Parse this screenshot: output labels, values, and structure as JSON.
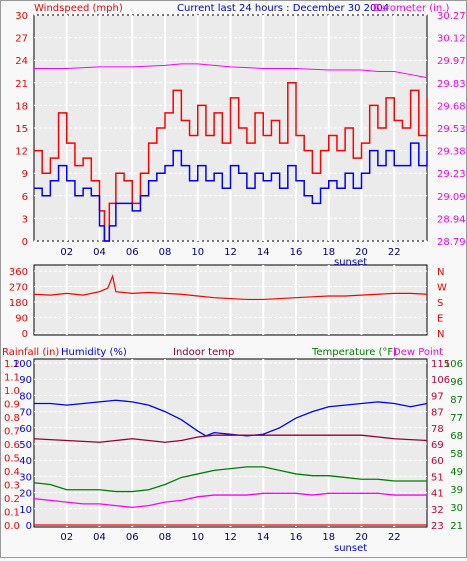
{
  "header": {
    "windspeed_label": "Windspeed (mph)",
    "title": "Current last 24 hours : December 30 2004",
    "barometer_label": "Barometer (in.)"
  },
  "bottom_header": {
    "rainfall_label": "Rainfall (in)",
    "humidity_label": "Humidity (%)",
    "indoor_label": "Indoor temp",
    "temperature_label": "Temperature (°F)",
    "dewpoint_label": "Dew Point"
  },
  "colors": {
    "windspeed": "#ff0000",
    "wind_avg": "#0000ff",
    "barometer": "#ff00ff",
    "direction": "#ff0000",
    "humidity": "#0000ff",
    "indoor": "#990033",
    "temperature": "#008000",
    "dewpoint": "#ff00ff",
    "rainfall": "#ff0000",
    "plot_bg": "#ebebeb",
    "title": "#0000cc"
  },
  "chart_data": [
    {
      "type": "line",
      "xticks": [
        "02",
        "04",
        "06",
        "08",
        "10",
        "12",
        "14",
        "16",
        "18",
        "20",
        "22"
      ],
      "x_annotation": "sunset",
      "ylim_left": [
        0,
        30
      ],
      "left_ticks": [
        "0",
        "3",
        "6",
        "9",
        "12",
        "15",
        "18",
        "21",
        "24",
        "27",
        "30"
      ],
      "right_ticks": [
        "28.79",
        "28.94",
        "29.09",
        "29.23",
        "29.38",
        "29.53",
        "29.68",
        "29.83",
        "29.97",
        "30.12",
        "30.27"
      ],
      "grid": true,
      "series": [
        {
          "name": "Windspeed (mph)",
          "axis": "left",
          "color": "#ff0000",
          "hours": [
            0,
            0.5,
            1,
            1.5,
            2,
            2.5,
            3,
            3.5,
            4,
            4.3,
            4.6,
            5,
            5.5,
            6,
            6.5,
            7,
            7.5,
            8,
            8.5,
            9,
            9.5,
            10,
            10.5,
            11,
            11.5,
            12,
            12.5,
            13,
            13.5,
            14,
            14.5,
            15,
            15.5,
            16,
            16.5,
            17,
            17.5,
            18,
            18.5,
            19,
            19.5,
            20,
            20.5,
            21,
            21.5,
            22,
            22.5,
            23,
            23.5,
            24
          ],
          "values": [
            12,
            9,
            11,
            17,
            13,
            10,
            11,
            8,
            4,
            0,
            5,
            9,
            8,
            5,
            9,
            13,
            15,
            17,
            20,
            16,
            14,
            18,
            14,
            17,
            13,
            19,
            15,
            13,
            17,
            14,
            16,
            13,
            21,
            14,
            12,
            9,
            12,
            14,
            12,
            15,
            11,
            13,
            18,
            15,
            19,
            16,
            15,
            20,
            14,
            19
          ]
        },
        {
          "name": "Wind average",
          "axis": "left",
          "color": "#0000ff",
          "hours": [
            0,
            0.5,
            1,
            1.5,
            2,
            2.5,
            3,
            3.5,
            4,
            4.3,
            4.6,
            5,
            5.5,
            6,
            6.5,
            7,
            7.5,
            8,
            8.5,
            9,
            9.5,
            10,
            10.5,
            11,
            11.5,
            12,
            12.5,
            13,
            13.5,
            14,
            14.5,
            15,
            15.5,
            16,
            16.5,
            17,
            17.5,
            18,
            18.5,
            19,
            19.5,
            20,
            20.5,
            21,
            21.5,
            22,
            22.5,
            23,
            23.5,
            24
          ],
          "values": [
            7,
            6,
            8,
            10,
            8,
            6,
            7,
            6,
            2,
            0,
            2,
            5,
            5,
            4,
            6,
            8,
            9,
            10,
            12,
            10,
            8,
            10,
            8,
            9,
            7,
            10,
            9,
            7,
            9,
            8,
            9,
            7,
            10,
            8,
            6,
            5,
            7,
            8,
            7,
            9,
            7,
            9,
            12,
            10,
            12,
            10,
            10,
            13,
            10,
            12
          ]
        },
        {
          "name": "Barometer (in.)",
          "axis": "right",
          "color": "#ff00ff",
          "hours": [
            0,
            2,
            4,
            6,
            8,
            9,
            10,
            11,
            12,
            14,
            16,
            18,
            20,
            21,
            22,
            23,
            24
          ],
          "values": [
            29.92,
            29.92,
            29.93,
            29.93,
            29.94,
            29.95,
            29.95,
            29.94,
            29.93,
            29.92,
            29.92,
            29.91,
            29.91,
            29.9,
            29.9,
            29.88,
            29.86
          ]
        }
      ]
    },
    {
      "type": "line",
      "xticks": [
        "02",
        "04",
        "06",
        "08",
        "10",
        "12",
        "14",
        "16",
        "18",
        "20",
        "22"
      ],
      "left_ticks": [
        "0",
        "90",
        "180",
        "270",
        "360"
      ],
      "right_ticks": [
        "N",
        "E",
        "S",
        "W",
        "N"
      ],
      "ylim": [
        0,
        360
      ],
      "grid": true,
      "series": [
        {
          "name": "Wind direction",
          "color": "#ff0000",
          "hours": [
            0,
            1,
            2,
            3,
            4,
            4.5,
            4.8,
            5,
            5.5,
            6,
            7,
            8,
            9,
            10,
            11,
            12,
            13,
            14,
            15,
            16,
            17,
            18,
            19,
            20,
            21,
            22,
            23,
            24
          ],
          "values": [
            225,
            220,
            230,
            220,
            240,
            260,
            330,
            240,
            235,
            230,
            235,
            230,
            225,
            215,
            205,
            200,
            195,
            195,
            200,
            205,
            210,
            215,
            215,
            220,
            225,
            230,
            230,
            225
          ]
        }
      ]
    },
    {
      "type": "line",
      "xticks": [
        "02",
        "04",
        "06",
        "08",
        "10",
        "12",
        "14",
        "16",
        "18",
        "20",
        "22"
      ],
      "x_annotation": "sunset",
      "rain_ticks": [
        "0.0",
        "0.1",
        "0.2",
        "0.3",
        "0.4",
        "0.5",
        "0.6",
        "0.7",
        "0.8",
        "0.9",
        "1.0",
        "1.1",
        "1.2"
      ],
      "humidity_ticks": [
        "0",
        "10",
        "20",
        "30",
        "40",
        "50",
        "60",
        "70",
        "80",
        "90",
        "100"
      ],
      "right_ticks_a": [
        "23",
        "32",
        "41",
        "51",
        "60",
        "69",
        "78",
        "87",
        "97",
        "106",
        "115"
      ],
      "right_ticks_b": [
        "21",
        "30",
        "39",
        "49",
        "58",
        "68",
        "77",
        "87",
        "96",
        "106"
      ],
      "grid": true,
      "series": [
        {
          "name": "Humidity (%)",
          "axis": "humidity",
          "color": "#0000ff",
          "hours": [
            0,
            1,
            2,
            3,
            4,
            5,
            6,
            7,
            8,
            9,
            10,
            10.5,
            11,
            12,
            13,
            14,
            15,
            16,
            17,
            18,
            19,
            20,
            21,
            22,
            23,
            24
          ],
          "values": [
            75,
            75,
            74,
            75,
            76,
            77,
            76,
            74,
            70,
            65,
            58,
            55,
            57,
            56,
            55,
            56,
            60,
            66,
            70,
            73,
            74,
            75,
            76,
            75,
            73,
            75
          ]
        },
        {
          "name": "Indoor temp",
          "axis": "temp",
          "color": "#990033",
          "hours": [
            0,
            2,
            4,
            5,
            6,
            7,
            8,
            9,
            10,
            11,
            12,
            14,
            16,
            18,
            20,
            22,
            24
          ],
          "values": [
            72,
            71,
            70,
            71,
            72,
            71,
            70,
            71,
            73,
            74,
            74,
            74,
            74,
            74,
            74,
            72,
            71
          ]
        },
        {
          "name": "Temperature (°F)",
          "axis": "temp",
          "color": "#008000",
          "hours": [
            0,
            1,
            2,
            3,
            4,
            5,
            6,
            7,
            8,
            9,
            10,
            11,
            12,
            13,
            14,
            15,
            16,
            17,
            18,
            19,
            20,
            21,
            22,
            23,
            24
          ],
          "values": [
            47,
            46,
            43,
            43,
            43,
            42,
            42,
            43,
            46,
            50,
            52,
            54,
            55,
            56,
            56,
            54,
            52,
            51,
            51,
            50,
            49,
            49,
            48,
            48,
            48
          ]
        },
        {
          "name": "Dew Point",
          "axis": "temp",
          "color": "#ff00ff",
          "hours": [
            0,
            1,
            2,
            3,
            4,
            5,
            6,
            7,
            8,
            9,
            10,
            11,
            12,
            13,
            14,
            15,
            16,
            17,
            18,
            19,
            20,
            21,
            22,
            23,
            24
          ],
          "values": [
            38,
            37,
            36,
            35,
            35,
            34,
            33,
            34,
            36,
            37,
            39,
            40,
            40,
            40,
            41,
            41,
            41,
            40,
            41,
            41,
            41,
            41,
            40,
            40,
            40
          ]
        },
        {
          "name": "Rainfall (in)",
          "axis": "rain",
          "color": "#ff0000",
          "hours": [
            0,
            24
          ],
          "values": [
            0.0,
            0.0
          ]
        }
      ]
    }
  ]
}
